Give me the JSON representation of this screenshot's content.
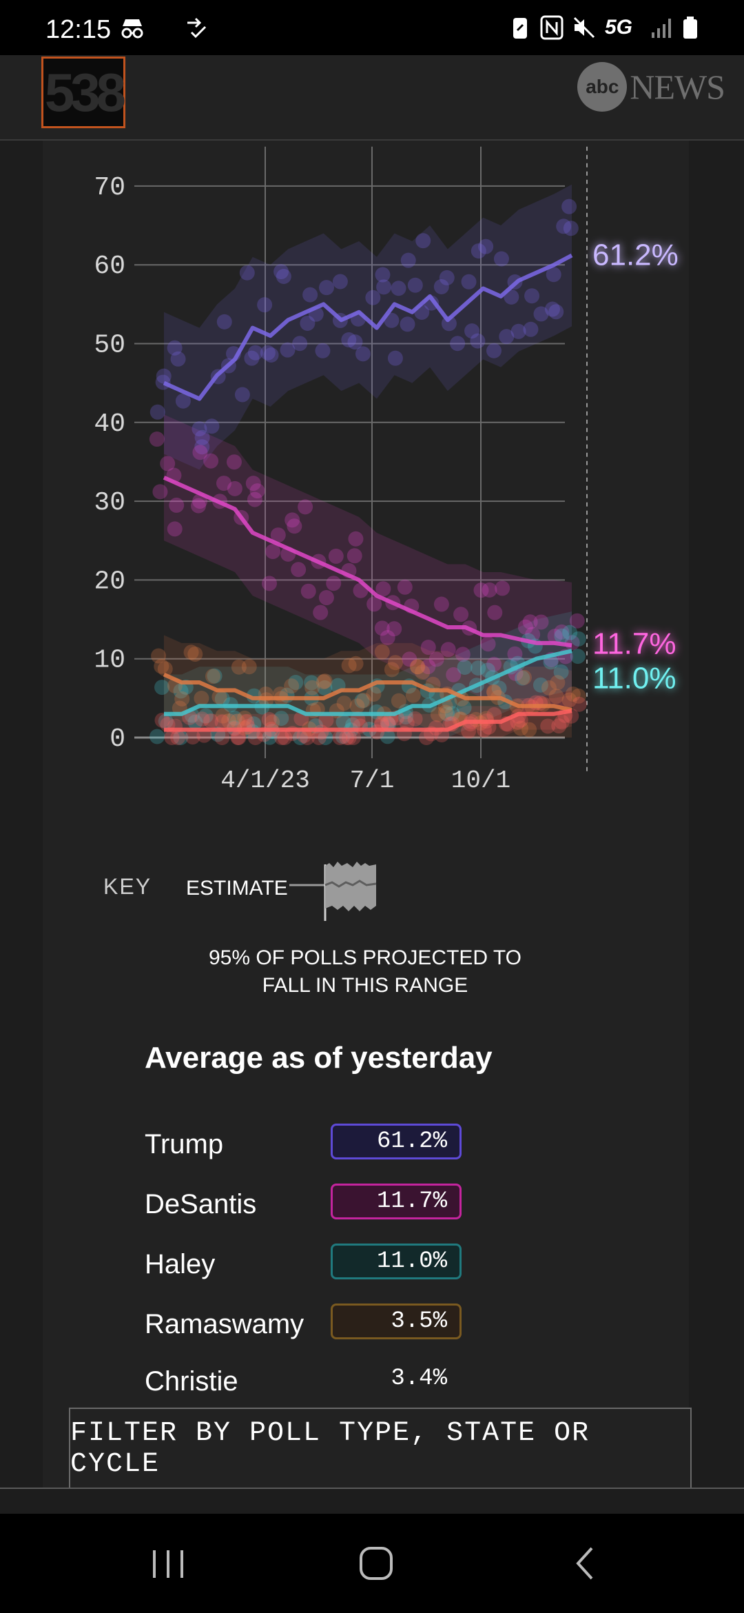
{
  "status_bar": {
    "time": "12:15",
    "network": "5G"
  },
  "header": {
    "logo_text": "538",
    "abc_logo_text": "abc",
    "news_text": "NEWS"
  },
  "colors": {
    "trump": "#7b68e8",
    "desantis": "#e048c8",
    "haley": "#45c7cf",
    "ramaswamy": "#e07a44",
    "christie": "#ff6060",
    "logo_border": "#c2531e"
  },
  "chart_data": {
    "type": "line",
    "x_tick_labels": [
      "4/1/23",
      "7/1",
      "10/1"
    ],
    "y_ticks": [
      0,
      10,
      20,
      30,
      40,
      50,
      60,
      70
    ],
    "ylim": [
      0,
      75
    ],
    "grid": true,
    "series": [
      {
        "key": "trump",
        "label": "61.2%",
        "values": [
          45,
          44,
          43,
          46,
          48,
          52,
          51,
          53,
          54,
          55,
          53,
          54,
          52,
          55,
          54,
          56,
          53,
          55,
          57,
          56,
          58,
          59,
          60,
          61.2
        ]
      },
      {
        "key": "desantis",
        "label": "11.7%",
        "values": [
          33,
          32,
          31,
          30,
          29,
          26,
          25,
          24,
          23,
          22,
          21,
          20,
          18,
          17,
          16,
          15,
          14,
          14,
          13,
          13,
          12.5,
          12,
          12,
          11.7
        ]
      },
      {
        "key": "haley",
        "label": "11.0%",
        "values": [
          3,
          3,
          4,
          4,
          4,
          4,
          4,
          4,
          3,
          3,
          3,
          3,
          3,
          3,
          4,
          4,
          5,
          6,
          7,
          8,
          9,
          10,
          10.5,
          11.0
        ]
      },
      {
        "key": "ramaswamy",
        "label": "3.5%",
        "values": [
          8,
          7,
          7,
          6,
          6,
          5,
          5,
          5,
          5,
          5,
          6,
          6,
          7,
          7,
          7,
          6,
          6,
          5,
          5,
          5,
          4,
          4,
          4,
          3.5
        ]
      },
      {
        "key": "christie",
        "label": "3.4%",
        "values": [
          1,
          1,
          1,
          1,
          1,
          1,
          1,
          1,
          1,
          1,
          1,
          1,
          1,
          1,
          1,
          1,
          1,
          2,
          2,
          2,
          3,
          3,
          3,
          3.4
        ]
      }
    ]
  },
  "key": {
    "label": "KEY",
    "estimate": "ESTIMATE",
    "range_line1": "95% OF POLLS PROJECTED TO",
    "range_line2": "FALL IN THIS RANGE"
  },
  "averages": {
    "title": "Average as of yesterday",
    "rows": [
      {
        "name": "Trump",
        "value": "61.2%"
      },
      {
        "name": "DeSantis",
        "value": "11.7%"
      },
      {
        "name": "Haley",
        "value": "11.0%"
      },
      {
        "name": "Ramaswamy",
        "value": "3.5%"
      },
      {
        "name": "Christie",
        "value": "3.4%"
      }
    ]
  },
  "filter_button": "FILTER BY POLL TYPE, STATE OR CYCLE"
}
